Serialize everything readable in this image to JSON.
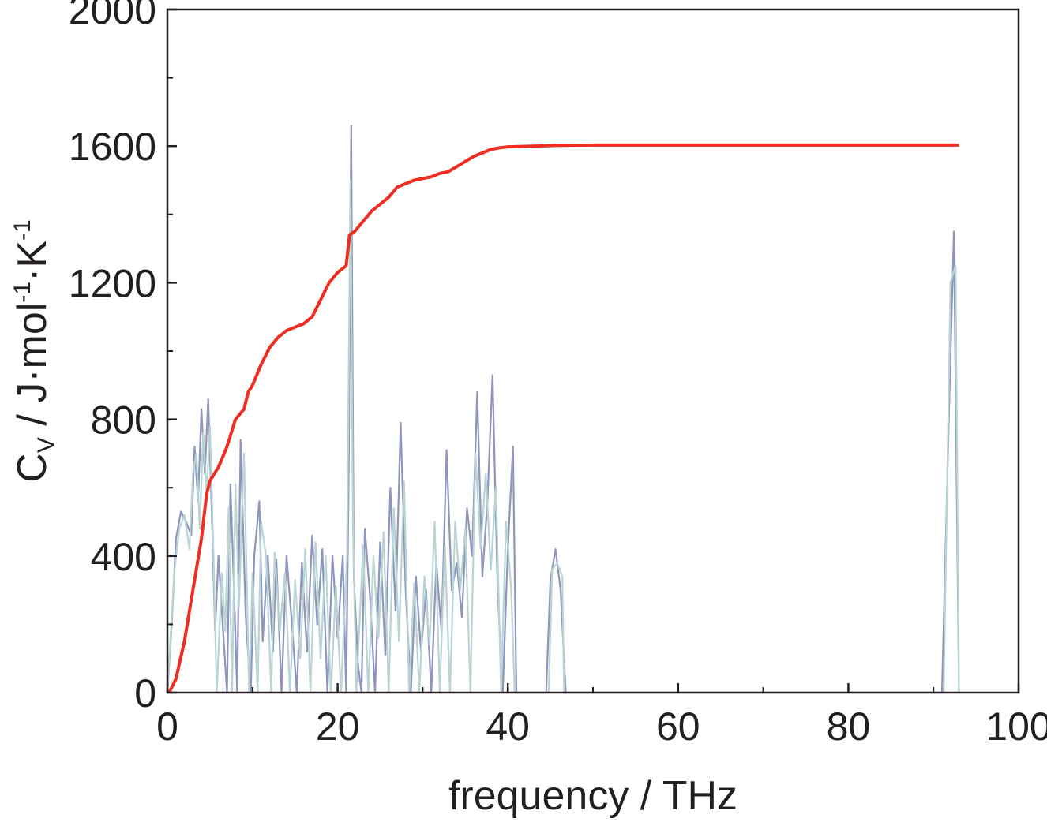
{
  "chart_data": {
    "type": "line",
    "title": "",
    "xlabel": "frequency / THz",
    "ylabel": {
      "parts": [
        {
          "text": "C",
          "style": "base"
        },
        {
          "text": "V",
          "style": "sub"
        },
        {
          "text": " / J·mol",
          "style": "base"
        },
        {
          "text": "-1",
          "style": "sup"
        },
        {
          "text": "·K",
          "style": "base"
        },
        {
          "text": "-1",
          "style": "sup"
        }
      ]
    },
    "xlim": [
      0,
      100
    ],
    "ylim": [
      0,
      2000
    ],
    "xticks": [
      0,
      20,
      40,
      60,
      80,
      100
    ],
    "yticks": [
      0,
      400,
      800,
      1200,
      1600,
      2000
    ],
    "x_tick_labels": [
      "0",
      "20",
      "40",
      "60",
      "80",
      "100"
    ],
    "y_tick_labels": [
      "0",
      "400",
      "800",
      "1200",
      "1600",
      "2000"
    ],
    "grid": false,
    "legend": "none",
    "series": [
      {
        "role": "cumulative",
        "color": "#ee2e22",
        "points": [
          [
            0.2,
            0
          ],
          [
            1,
            40
          ],
          [
            2,
            150
          ],
          [
            3,
            300
          ],
          [
            4,
            450
          ],
          [
            4.6,
            580
          ],
          [
            5,
            620
          ],
          [
            6,
            660
          ],
          [
            7,
            720
          ],
          [
            8,
            800
          ],
          [
            9,
            830
          ],
          [
            9.5,
            880
          ],
          [
            10,
            900
          ],
          [
            11,
            960
          ],
          [
            12,
            1010
          ],
          [
            13,
            1040
          ],
          [
            14,
            1060
          ],
          [
            15,
            1070
          ],
          [
            16,
            1080
          ],
          [
            17,
            1100
          ],
          [
            18,
            1150
          ],
          [
            19,
            1200
          ],
          [
            20,
            1230
          ],
          [
            21,
            1250
          ],
          [
            21.4,
            1340
          ],
          [
            22,
            1350
          ],
          [
            23,
            1380
          ],
          [
            24,
            1410
          ],
          [
            25,
            1430
          ],
          [
            26,
            1450
          ],
          [
            27,
            1480
          ],
          [
            28,
            1490
          ],
          [
            29,
            1500
          ],
          [
            30,
            1505
          ],
          [
            31,
            1510
          ],
          [
            32,
            1520
          ],
          [
            33,
            1525
          ],
          [
            34,
            1540
          ],
          [
            35,
            1555
          ],
          [
            36,
            1570
          ],
          [
            37,
            1580
          ],
          [
            38,
            1590
          ],
          [
            39,
            1595
          ],
          [
            40,
            1598
          ],
          [
            43,
            1600
          ],
          [
            46,
            1602
          ],
          [
            50,
            1603
          ],
          [
            60,
            1603
          ],
          [
            70,
            1603
          ],
          [
            80,
            1603
          ],
          [
            90,
            1603
          ],
          [
            93,
            1603
          ]
        ]
      },
      {
        "role": "density-a",
        "color": "#8f95bd",
        "points": [
          [
            0,
            0
          ],
          [
            0.5,
            200
          ],
          [
            1,
            450
          ],
          [
            1.6,
            530
          ],
          [
            2.2,
            500
          ],
          [
            2.8,
            460
          ],
          [
            3.2,
            720
          ],
          [
            3.6,
            560
          ],
          [
            4,
            830
          ],
          [
            4.4,
            640
          ],
          [
            4.8,
            860
          ],
          [
            5.2,
            540
          ],
          [
            5.6,
            180
          ],
          [
            6,
            400
          ],
          [
            6.6,
            160
          ],
          [
            7,
            0
          ],
          [
            7.4,
            610
          ],
          [
            7.8,
            320
          ],
          [
            8.2,
            0
          ],
          [
            8.6,
            740
          ],
          [
            9.2,
            220
          ],
          [
            9.8,
            0
          ],
          [
            10.2,
            400
          ],
          [
            10.8,
            560
          ],
          [
            11.2,
            150
          ],
          [
            11.8,
            400
          ],
          [
            12.4,
            120
          ],
          [
            12.8,
            390
          ],
          [
            13.4,
            0
          ],
          [
            14,
            400
          ],
          [
            14.6,
            210
          ],
          [
            15.2,
            0
          ],
          [
            15.8,
            380
          ],
          [
            16.4,
            120
          ],
          [
            17,
            460
          ],
          [
            17.6,
            200
          ],
          [
            18.2,
            420
          ],
          [
            18.8,
            0
          ],
          [
            19.4,
            400
          ],
          [
            20,
            160
          ],
          [
            20.6,
            400
          ],
          [
            21,
            0
          ],
          [
            21.3,
            640
          ],
          [
            21.6,
            1660
          ],
          [
            21.9,
            340
          ],
          [
            22.4,
            80
          ],
          [
            22.8,
            0
          ],
          [
            23.2,
            480
          ],
          [
            23.8,
            280
          ],
          [
            24.4,
            0
          ],
          [
            25,
            440
          ],
          [
            25.6,
            110
          ],
          [
            26.2,
            600
          ],
          [
            26.8,
            240
          ],
          [
            27.4,
            790
          ],
          [
            28,
            300
          ],
          [
            28.6,
            0
          ],
          [
            29.2,
            340
          ],
          [
            29.8,
            120
          ],
          [
            30.4,
            300
          ],
          [
            31,
            0
          ],
          [
            31.6,
            380
          ],
          [
            32.2,
            180
          ],
          [
            32.8,
            710
          ],
          [
            33.4,
            300
          ],
          [
            34,
            380
          ],
          [
            34.6,
            220
          ],
          [
            35.2,
            540
          ],
          [
            35.8,
            400
          ],
          [
            36.4,
            880
          ],
          [
            37,
            340
          ],
          [
            37.6,
            560
          ],
          [
            38.2,
            930
          ],
          [
            38.8,
            300
          ],
          [
            39.4,
            0
          ],
          [
            40,
            420
          ],
          [
            40.6,
            720
          ],
          [
            41,
            0
          ],
          [
            44.5,
            0
          ],
          [
            45,
            330
          ],
          [
            45.6,
            420
          ],
          [
            46.2,
            300
          ],
          [
            46.8,
            0
          ],
          [
            91,
            0
          ],
          [
            91.8,
            800
          ],
          [
            92.4,
            1350
          ],
          [
            93,
            0
          ]
        ]
      },
      {
        "role": "density-b",
        "color": "#b9d4d4",
        "points": [
          [
            0,
            0
          ],
          [
            0.8,
            350
          ],
          [
            1.4,
            480
          ],
          [
            2,
            520
          ],
          [
            2.6,
            420
          ],
          [
            3,
            640
          ],
          [
            3.4,
            700
          ],
          [
            3.8,
            480
          ],
          [
            4.2,
            760
          ],
          [
            4.6,
            580
          ],
          [
            5,
            780
          ],
          [
            5.4,
            420
          ],
          [
            5.8,
            0
          ],
          [
            6.4,
            350
          ],
          [
            6.8,
            180
          ],
          [
            7.2,
            540
          ],
          [
            7.6,
            0
          ],
          [
            8,
            610
          ],
          [
            8.4,
            250
          ],
          [
            9,
            700
          ],
          [
            9.6,
            0
          ],
          [
            10,
            350
          ],
          [
            10.6,
            0
          ],
          [
            11,
            500
          ],
          [
            11.6,
            400
          ],
          [
            12.2,
            0
          ],
          [
            12.6,
            410
          ],
          [
            13.2,
            180
          ],
          [
            13.8,
            350
          ],
          [
            14.4,
            0
          ],
          [
            15,
            330
          ],
          [
            15.6,
            100
          ],
          [
            16.2,
            420
          ],
          [
            16.8,
            0
          ],
          [
            17.4,
            440
          ],
          [
            18,
            100
          ],
          [
            18.6,
            400
          ],
          [
            19.2,
            0
          ],
          [
            19.8,
            310
          ],
          [
            20.4,
            0
          ],
          [
            21.1,
            400
          ],
          [
            21.5,
            1500
          ],
          [
            21.8,
            500
          ],
          [
            22.2,
            0
          ],
          [
            23,
            430
          ],
          [
            23.6,
            0
          ],
          [
            24.2,
            400
          ],
          [
            24.8,
            160
          ],
          [
            25.4,
            470
          ],
          [
            26,
            0
          ],
          [
            26.6,
            540
          ],
          [
            27.2,
            150
          ],
          [
            27.8,
            620
          ],
          [
            28.4,
            0
          ],
          [
            29,
            320
          ],
          [
            29.6,
            0
          ],
          [
            30.2,
            340
          ],
          [
            30.8,
            140
          ],
          [
            31.4,
            500
          ],
          [
            32,
            0
          ],
          [
            32.6,
            430
          ],
          [
            33.2,
            0
          ],
          [
            33.8,
            500
          ],
          [
            34.4,
            300
          ],
          [
            35,
            480
          ],
          [
            35.6,
            0
          ],
          [
            36.2,
            700
          ],
          [
            36.8,
            420
          ],
          [
            37.4,
            640
          ],
          [
            38,
            360
          ],
          [
            38.6,
            600
          ],
          [
            39.2,
            0
          ],
          [
            39.8,
            500
          ],
          [
            40.4,
            300
          ],
          [
            40.8,
            0
          ],
          [
            44.8,
            0
          ],
          [
            45.2,
            360
          ],
          [
            45.8,
            380
          ],
          [
            46.4,
            340
          ],
          [
            46.6,
            0
          ],
          [
            91.2,
            0
          ],
          [
            92,
            1200
          ],
          [
            92.6,
            1250
          ],
          [
            93,
            0
          ]
        ]
      }
    ]
  }
}
